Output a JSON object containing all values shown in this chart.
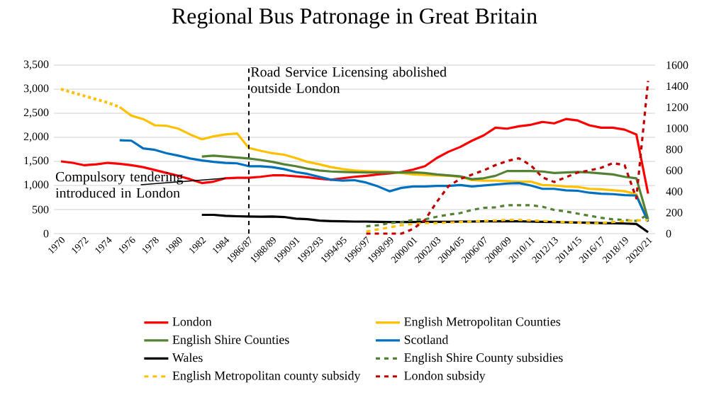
{
  "chart_data": {
    "type": "line",
    "title": "Regional Bus Patronage in Great Britain",
    "categories": [
      "1970",
      null,
      "1972",
      null,
      "1974",
      null,
      "1976",
      null,
      "1978",
      null,
      "1980",
      null,
      "1982",
      null,
      "1984",
      null,
      "1986/87",
      null,
      "1988/89",
      null,
      "1990/91",
      null,
      "1992/93",
      null,
      "1994/95",
      null,
      "1996/97",
      null,
      "1998/99",
      null,
      "2000/01",
      null,
      "2002/03",
      null,
      "2004/05",
      null,
      "2006/07",
      null,
      "2008/09",
      null,
      "2010/11",
      null,
      "2012/13",
      null,
      "2014/15",
      null,
      "2016/17",
      null,
      "2018/19",
      null,
      "2020/21"
    ],
    "series": [
      {
        "name": "London",
        "color": "#ff0000",
        "line_style": "solid",
        "values": [
          1500,
          1470,
          1420,
          1440,
          1470,
          1450,
          1420,
          1380,
          1320,
          1260,
          1200,
          1130,
          1050,
          1080,
          1150,
          1160,
          1160,
          1180,
          1210,
          1210,
          1190,
          1170,
          1140,
          1120,
          1150,
          1180,
          1200,
          1230,
          1250,
          1280,
          1330,
          1400,
          1570,
          1700,
          1800,
          1930,
          2040,
          2200,
          2180,
          2230,
          2260,
          2320,
          2290,
          2380,
          2350,
          2250,
          2200,
          2200,
          2160,
          2060,
          830
        ]
      },
      {
        "name": "English Metropolitan Counties",
        "color": "#ffc000",
        "line_style": "solid",
        "values": [
          null,
          null,
          null,
          null,
          null,
          2630,
          2450,
          2380,
          2250,
          2240,
          2180,
          2060,
          1960,
          2020,
          2060,
          2080,
          1780,
          1720,
          1670,
          1640,
          1570,
          1490,
          1440,
          1380,
          1340,
          1310,
          1300,
          1290,
          1280,
          1260,
          1230,
          1220,
          1210,
          1200,
          1180,
          1110,
          1100,
          1100,
          1090,
          1080,
          1080,
          1010,
          1000,
          980,
          970,
          930,
          920,
          900,
          880,
          820,
          250
        ]
      },
      {
        "name": "English Shire Counties",
        "color": "#548235",
        "line_style": "solid",
        "values": [
          null,
          null,
          null,
          null,
          null,
          null,
          null,
          null,
          null,
          null,
          null,
          null,
          1600,
          1620,
          1600,
          1580,
          1560,
          1530,
          1490,
          1440,
          1400,
          1350,
          1310,
          1290,
          1280,
          1275,
          1270,
          1270,
          1275,
          1270,
          1275,
          1260,
          1230,
          1210,
          1190,
          1130,
          1150,
          1200,
          1300,
          1300,
          1300,
          1290,
          1260,
          1270,
          1280,
          1270,
          1250,
          1230,
          1180,
          1150,
          300
        ]
      },
      {
        "name": "Scotland",
        "color": "#0070c0",
        "line_style": "solid",
        "values": [
          null,
          null,
          null,
          null,
          null,
          1940,
          1930,
          1770,
          1740,
          1670,
          1620,
          1560,
          1520,
          1490,
          1470,
          1460,
          1400,
          1400,
          1380,
          1340,
          1280,
          1240,
          1180,
          1120,
          1100,
          1110,
          1060,
          980,
          880,
          950,
          980,
          980,
          990,
          990,
          1010,
          980,
          1000,
          1020,
          1040,
          1050,
          1000,
          930,
          930,
          900,
          890,
          850,
          830,
          820,
          800,
          790,
          250
        ]
      },
      {
        "name": "Wales",
        "color": "#000000",
        "line_style": "solid",
        "values": [
          null,
          null,
          null,
          null,
          null,
          null,
          null,
          null,
          null,
          null,
          null,
          null,
          390,
          390,
          370,
          360,
          355,
          350,
          355,
          345,
          310,
          300,
          270,
          260,
          255,
          250,
          250,
          245,
          240,
          240,
          240,
          245,
          245,
          245,
          250,
          250,
          255,
          255,
          260,
          255,
          250,
          245,
          240,
          235,
          230,
          225,
          220,
          215,
          210,
          200,
          30
        ]
      },
      {
        "name": "English Shire County subsidies",
        "color": "#548235",
        "line_style": "dashed",
        "axis": "y2",
        "values": [
          null,
          null,
          null,
          null,
          null,
          null,
          null,
          null,
          null,
          null,
          null,
          null,
          null,
          null,
          null,
          null,
          null,
          null,
          null,
          null,
          null,
          null,
          null,
          null,
          null,
          null,
          70,
          80,
          100,
          110,
          130,
          135,
          160,
          180,
          195,
          225,
          245,
          250,
          270,
          270,
          270,
          255,
          225,
          210,
          190,
          170,
          150,
          135,
          130,
          120,
          180
        ]
      },
      {
        "name": "English Metropolitan county subsidy",
        "color": "#ffc000",
        "line_style": "dashed",
        "axis": "y2",
        "values": [
          null,
          null,
          null,
          null,
          null,
          null,
          null,
          null,
          null,
          null,
          null,
          null,
          null,
          null,
          null,
          null,
          null,
          null,
          null,
          null,
          null,
          null,
          null,
          null,
          null,
          null,
          20,
          40,
          60,
          80,
          90,
          100,
          100,
          105,
          110,
          115,
          120,
          125,
          130,
          130,
          125,
          120,
          115,
          110,
          105,
          100,
          100,
          110,
          120,
          125,
          130
        ]
      },
      {
        "name": "London subsidy",
        "color": "#c00000",
        "line_style": "dashed",
        "axis": "y2",
        "values": [
          null,
          null,
          null,
          null,
          null,
          null,
          null,
          null,
          null,
          null,
          null,
          null,
          null,
          null,
          null,
          null,
          null,
          null,
          null,
          null,
          null,
          null,
          null,
          null,
          null,
          null,
          0,
          0,
          0,
          0,
          45,
          130,
          300,
          450,
          520,
          560,
          600,
          650,
          690,
          715,
          650,
          535,
          490,
          535,
          580,
          600,
          625,
          670,
          650,
          335,
          1450
        ]
      },
      {
        "color": "#ffc000",
        "line_style": "dotted",
        "values": [
          3000,
          2930,
          2860,
          2790,
          2720,
          2630,
          null,
          null,
          null,
          null,
          null,
          null,
          null,
          null,
          null,
          null,
          null,
          null,
          null,
          null,
          null,
          null,
          null,
          null,
          null,
          null,
          null,
          null,
          null,
          null,
          null,
          null,
          null,
          null,
          null,
          null,
          null,
          null,
          null,
          null,
          null,
          null,
          null,
          null,
          null,
          null,
          null,
          null,
          null,
          null,
          null
        ]
      }
    ],
    "ylim": [
      0,
      3500
    ],
    "yticks": [
      {
        "value": 0,
        "label": "0"
      },
      {
        "value": 500,
        "label": "500"
      },
      {
        "value": 1000,
        "label": "1,000"
      },
      {
        "value": 1500,
        "label": "1,500"
      },
      {
        "value": 2000,
        "label": "2,000"
      },
      {
        "value": 2500,
        "label": "2,500"
      },
      {
        "value": 3000,
        "label": "3,000"
      },
      {
        "value": 3500,
        "label": "3,500"
      }
    ],
    "y2lim": [
      0,
      1600
    ],
    "y2ticks": [
      0,
      200,
      400,
      600,
      800,
      1000,
      1200,
      1400,
      1600
    ],
    "grid": "y",
    "legend": "bottom",
    "ref_lines": [
      {
        "axis": "x",
        "value": "1986/87",
        "label": "Road Service Licensing abolished outside London",
        "color": "#000000",
        "line_style": "dashed"
      }
    ],
    "annotations": [
      {
        "text": "Compulsory tendering introduced in London",
        "x": "1984",
        "y": 1150
      }
    ]
  }
}
